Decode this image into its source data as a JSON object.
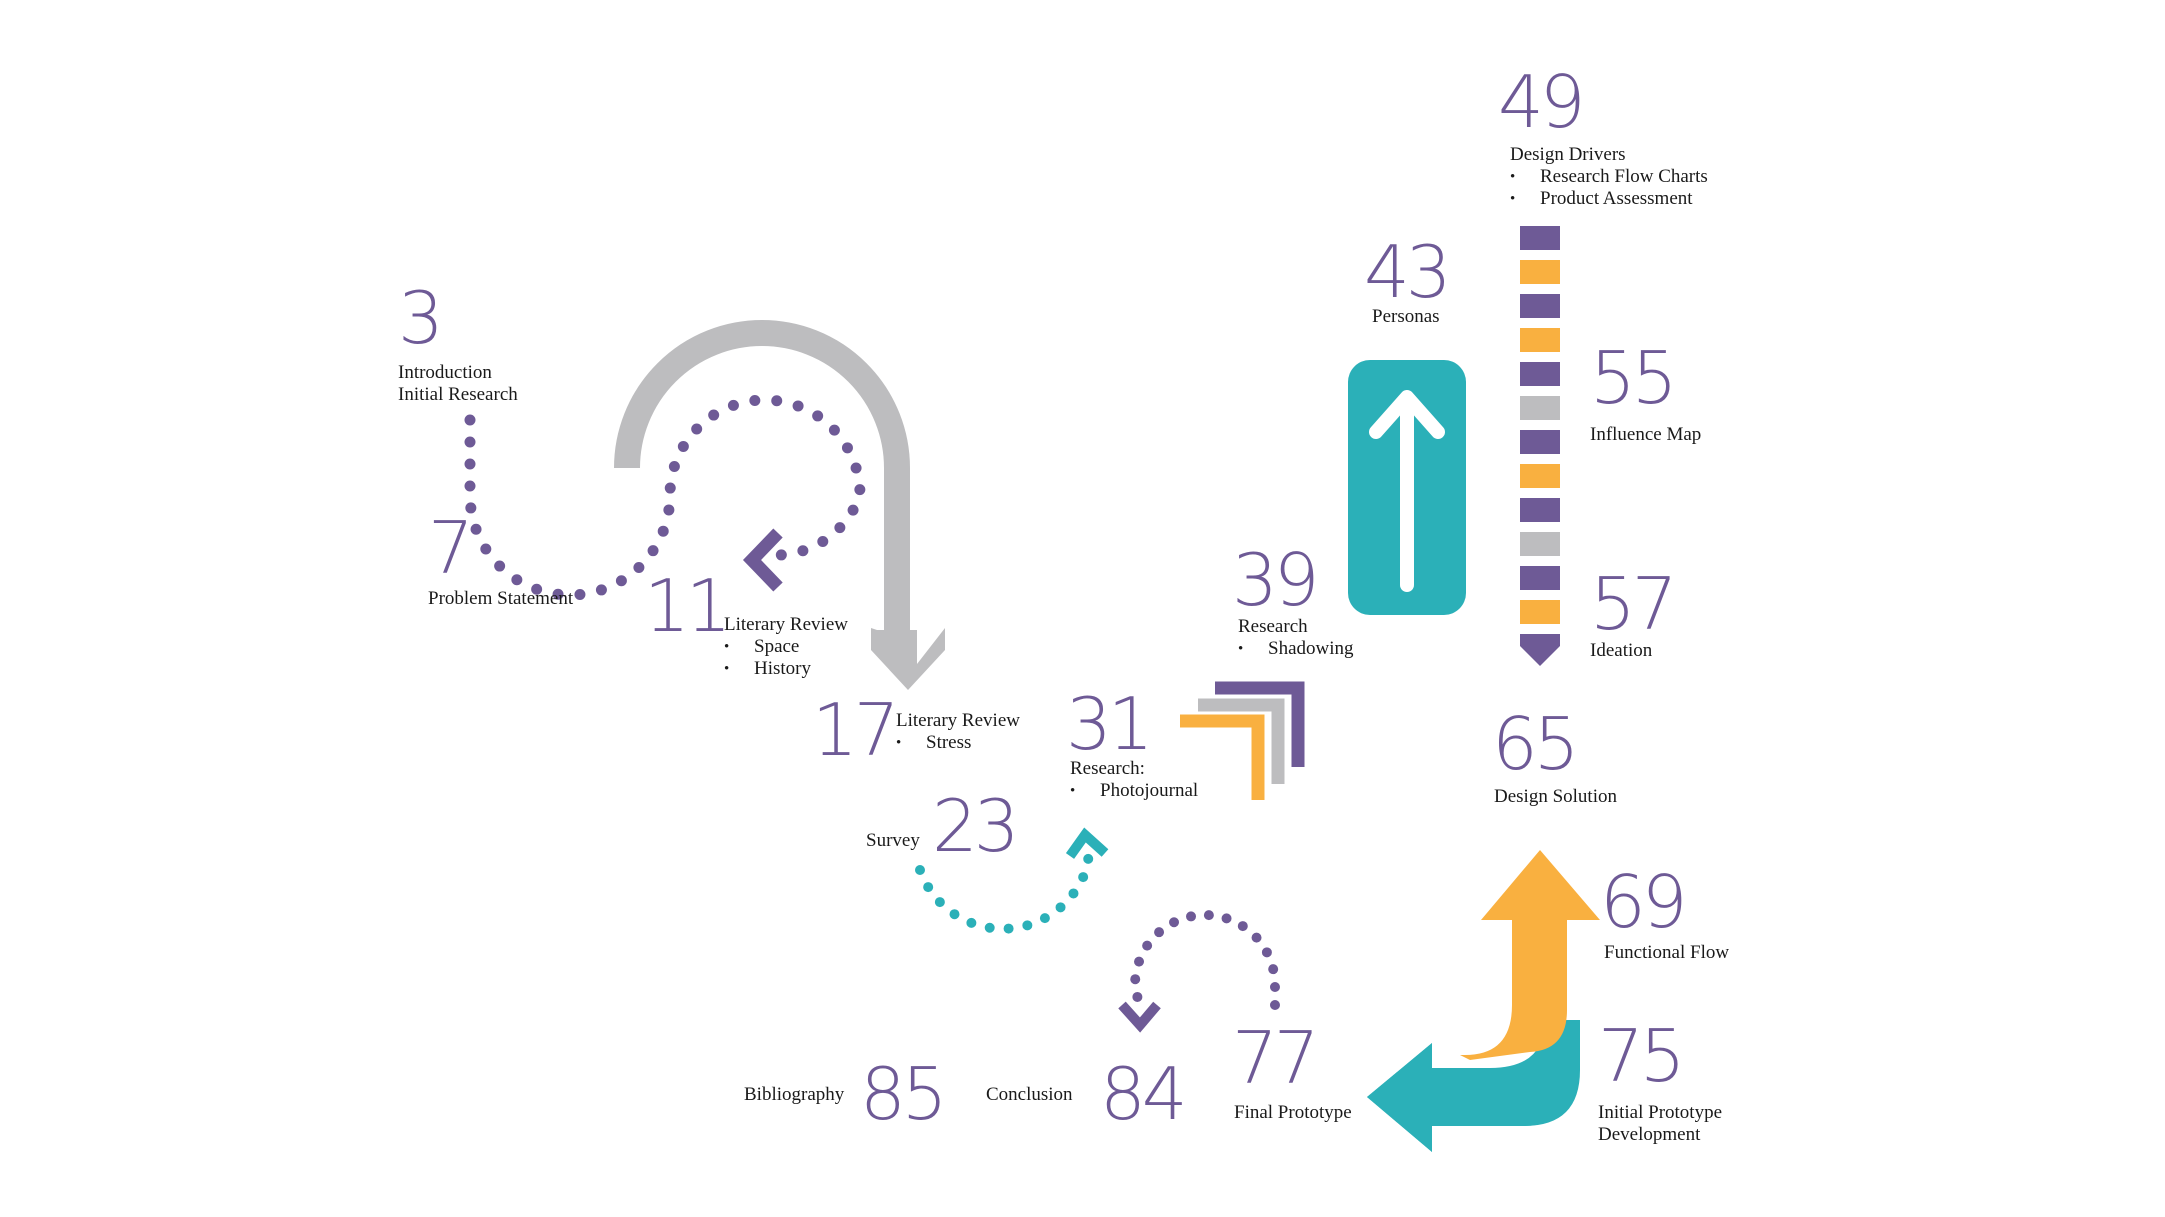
{
  "colors": {
    "purple": "#6e5a96",
    "teal": "#2bb0b8",
    "orange": "#f9b040",
    "gray": "#bdbdbf"
  },
  "icons": {
    "gray_curve": "curved-arrow-icon",
    "purple_loop": "dotted-loop-arrow-icon",
    "chevrons": "stacked-chevron-arrow-icon",
    "teal_box": "up-arrow-box-icon",
    "striped_column": "striped-down-arrow-icon",
    "teal_loop": "dotted-circle-arrow-icon",
    "purple_small_loop": "dotted-arc-arrow-icon",
    "bent_arrows": "bent-arrows-icon"
  },
  "stripe_pattern": [
    "purple",
    "orange",
    "purple",
    "orange",
    "purple",
    "gray",
    "purple",
    "orange",
    "purple",
    "gray",
    "purple",
    "orange"
  ],
  "nodes": [
    {
      "id": "p3",
      "number": "3",
      "lines": [
        "Introduction",
        "Initial Research"
      ],
      "bullets": []
    },
    {
      "id": "p7",
      "number": "7",
      "lines": [
        "Problem Statement"
      ],
      "bullets": []
    },
    {
      "id": "p11",
      "number": "11",
      "lines": [
        "Literary Review"
      ],
      "bullets": [
        "Space",
        "History"
      ]
    },
    {
      "id": "p17",
      "number": "17",
      "lines": [
        "Literary Review"
      ],
      "bullets": [
        "Stress"
      ]
    },
    {
      "id": "p23",
      "number": "23",
      "lines": [
        "Survey"
      ],
      "bullets": []
    },
    {
      "id": "p31",
      "number": "31",
      "lines": [
        "Research:"
      ],
      "bullets": [
        "Photojournal"
      ]
    },
    {
      "id": "p39",
      "number": "39",
      "lines": [
        "Research"
      ],
      "bullets": [
        "Shadowing"
      ]
    },
    {
      "id": "p43",
      "number": "43",
      "lines": [
        "Personas"
      ],
      "bullets": []
    },
    {
      "id": "p49",
      "number": "49",
      "lines": [
        "Design Drivers"
      ],
      "bullets": [
        "Research Flow Charts",
        "Product Assessment"
      ]
    },
    {
      "id": "p55",
      "number": "55",
      "lines": [
        "Influence Map"
      ],
      "bullets": []
    },
    {
      "id": "p57",
      "number": "57",
      "lines": [
        "Ideation"
      ],
      "bullets": []
    },
    {
      "id": "p65",
      "number": "65",
      "lines": [
        "Design Solution"
      ],
      "bullets": []
    },
    {
      "id": "p69",
      "number": "69",
      "lines": [
        "Functional Flow"
      ],
      "bullets": []
    },
    {
      "id": "p75",
      "number": "75",
      "lines": [
        "Initial Prototype",
        "Development"
      ],
      "bullets": []
    },
    {
      "id": "p77",
      "number": "77",
      "lines": [
        "Final Prototype"
      ],
      "bullets": []
    },
    {
      "id": "p84",
      "number": "84",
      "lines": [
        "Conclusion"
      ],
      "bullets": []
    },
    {
      "id": "p85",
      "number": "85",
      "lines": [
        "Bibliography"
      ],
      "bullets": []
    }
  ]
}
